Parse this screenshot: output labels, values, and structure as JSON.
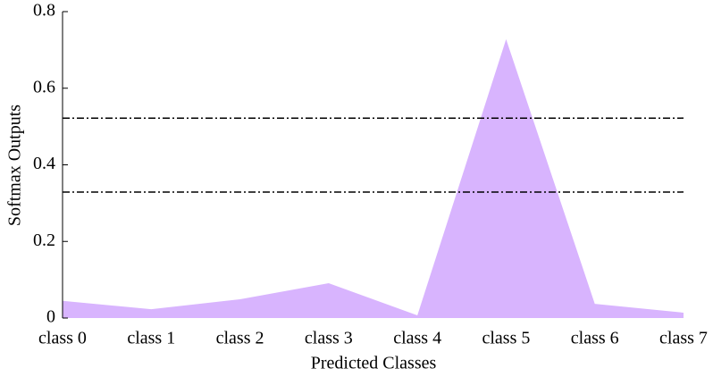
{
  "chart_data": {
    "type": "area",
    "categories": [
      "class 0",
      "class 1",
      "class 2",
      "class 3",
      "class 4",
      "class 5",
      "class 6",
      "class 7"
    ],
    "values": [
      0.045,
      0.023,
      0.049,
      0.091,
      0.007,
      0.728,
      0.037,
      0.014
    ],
    "color": "#d8b4fe",
    "xlabel": "Predicted Classes",
    "ylabel": "Softmax Outputs",
    "ylim": [
      0,
      0.8
    ],
    "yticks": [
      0,
      0.2,
      0.4,
      0.6,
      0.8
    ],
    "hlines": [
      0.522,
      0.329
    ],
    "hline_color": "#000000"
  }
}
